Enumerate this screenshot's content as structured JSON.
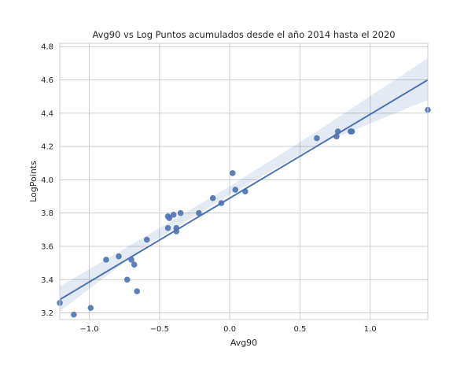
{
  "chart_data": {
    "type": "scatter",
    "title": "Avg90 vs Log Puntos acumulados desde el año 2014 hasta el 2020",
    "xlabel": "Avg90",
    "ylabel": "LogPoints",
    "xlim": [
      -1.21,
      1.41
    ],
    "ylim": [
      3.16,
      4.82
    ],
    "x_ticks": [
      -1.0,
      -0.5,
      0.0,
      0.5,
      1.0
    ],
    "x_tick_labels": [
      "−1.0",
      "−0.5",
      "0.0",
      "0.5",
      "1.0"
    ],
    "y_ticks": [
      3.2,
      3.4,
      3.6,
      3.8,
      4.0,
      4.2,
      4.4,
      4.6,
      4.8
    ],
    "y_tick_labels": [
      "3.2",
      "3.4",
      "3.6",
      "3.8",
      "4.0",
      "4.2",
      "4.4",
      "4.6",
      "4.8"
    ],
    "grid": true,
    "colors": {
      "points": "#4c72b0",
      "line": "#4c72b0",
      "band": "#4c72b0"
    },
    "points": [
      {
        "x": -1.21,
        "y": 3.26
      },
      {
        "x": -1.11,
        "y": 3.19
      },
      {
        "x": -0.99,
        "y": 3.23
      },
      {
        "x": -0.88,
        "y": 3.52
      },
      {
        "x": -0.79,
        "y": 3.54
      },
      {
        "x": -0.73,
        "y": 3.4
      },
      {
        "x": -0.7,
        "y": 3.52
      },
      {
        "x": -0.68,
        "y": 3.49
      },
      {
        "x": -0.66,
        "y": 3.33
      },
      {
        "x": -0.59,
        "y": 3.64
      },
      {
        "x": -0.44,
        "y": 3.78
      },
      {
        "x": -0.43,
        "y": 3.77
      },
      {
        "x": -0.44,
        "y": 3.71
      },
      {
        "x": -0.4,
        "y": 3.79
      },
      {
        "x": -0.38,
        "y": 3.71
      },
      {
        "x": -0.38,
        "y": 3.69
      },
      {
        "x": -0.35,
        "y": 3.8
      },
      {
        "x": -0.22,
        "y": 3.8
      },
      {
        "x": -0.12,
        "y": 3.89
      },
      {
        "x": -0.06,
        "y": 3.86
      },
      {
        "x": 0.02,
        "y": 4.04
      },
      {
        "x": 0.04,
        "y": 3.94
      },
      {
        "x": 0.11,
        "y": 3.93
      },
      {
        "x": 0.62,
        "y": 4.25
      },
      {
        "x": 0.76,
        "y": 4.26
      },
      {
        "x": 0.77,
        "y": 4.29
      },
      {
        "x": 0.86,
        "y": 4.29
      },
      {
        "x": 0.87,
        "y": 4.29
      },
      {
        "x": 1.41,
        "y": 4.42
      }
    ],
    "regression": {
      "x": [
        -1.21,
        1.41
      ],
      "y": [
        3.28,
        4.6
      ]
    },
    "confidence_band": {
      "x": [
        -1.21,
        -0.6,
        0.0,
        0.6,
        1.41
      ],
      "lower": [
        3.21,
        3.6,
        3.91,
        4.2,
        4.48
      ],
      "upper": [
        3.36,
        3.66,
        3.96,
        4.28,
        4.73
      ]
    }
  }
}
